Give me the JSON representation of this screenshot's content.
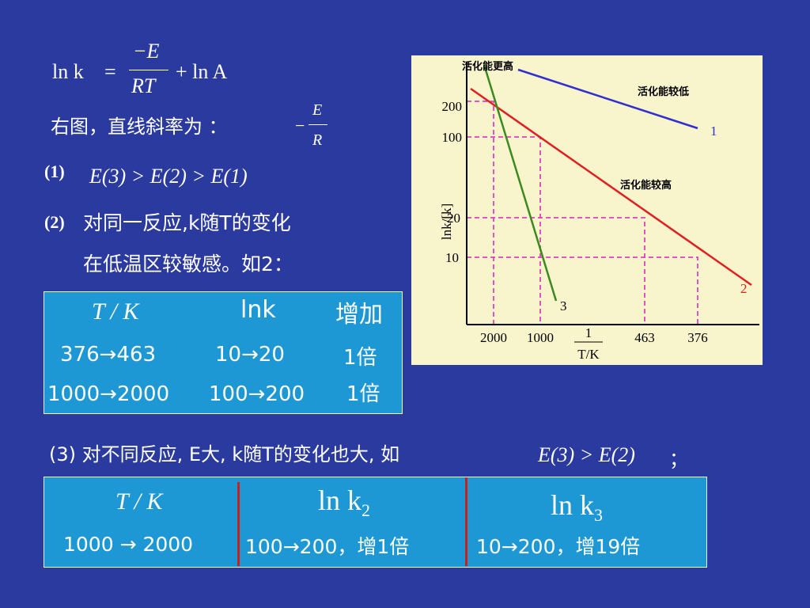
{
  "formula": {
    "lhs": "ln k",
    "equals": "=",
    "numerator": "−E",
    "denominator": "RT",
    "rhs": "+ ln A"
  },
  "slope": {
    "text": "右图，直线斜率为 ：",
    "sign": "−",
    "numerator": "E",
    "denominator": "R"
  },
  "point1": {
    "label": "(1)",
    "text": "E(3) > E(2) > E(1)"
  },
  "point2": {
    "label": "(2)",
    "line1": "对同一反应,k随T的变化",
    "line2": "在低温区较敏感。如2："
  },
  "table1": {
    "header": [
      "T / K",
      "lnk",
      "增加"
    ],
    "rows": [
      [
        "376→463",
        "10→20",
        "1倍"
      ],
      [
        "1000→2000",
        "100→200",
        "1倍"
      ]
    ]
  },
  "point3": {
    "text": "(3) 对不同反应, E大, k随T的变化也大, 如",
    "formula": "E(3) > E(2)",
    "end": "；"
  },
  "table2": {
    "header": [
      "T / K",
      {
        "fn": "ln k",
        "sub": "2"
      },
      {
        "fn": "ln k",
        "sub": "3"
      }
    ],
    "rows": [
      [
        "1000 → 2000",
        "100→200，增1倍",
        "10→200，增19倍"
      ]
    ]
  },
  "figure": {
    "y_axis_label": "lnk/[k]",
    "y_labels": [
      "200",
      "100",
      "20",
      "10"
    ],
    "x_labels": [
      "2000",
      "1000",
      "463",
      "376"
    ],
    "x_axis_numerator": "1",
    "x_axis_denominator": "T/K",
    "line_labels": [
      "1",
      "2",
      "3"
    ],
    "annotations": [
      "活化能更高",
      "活化能较低",
      "活化能较高"
    ]
  }
}
